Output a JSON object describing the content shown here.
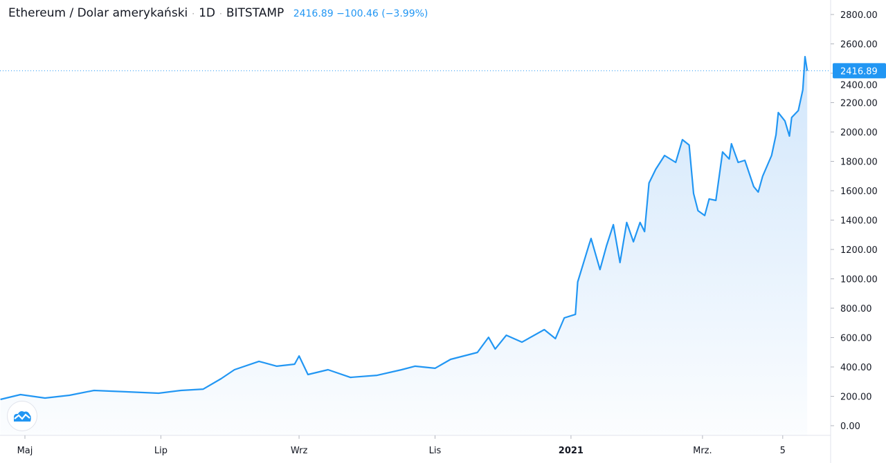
{
  "header": {
    "symbol": "Ethereum / Dolar amerykański",
    "interval": "1D",
    "exchange": "BITSTAMP",
    "last": "2416.89",
    "change": "−100.46",
    "change_pct": "(−3.99%)",
    "separator": "·"
  },
  "colors": {
    "line": "#2196f3",
    "fill_top": "#cfe5fb",
    "grid": "#e0e3eb"
  },
  "logo": {
    "icon": "tradingview-cloud-icon"
  },
  "chart_data": {
    "type": "area",
    "title": "Ethereum / Dolar amerykański · 1D · BITSTAMP",
    "xlabel": "",
    "ylabel": "",
    "x_unit": "days since 1 May 2020",
    "ylim": [
      0,
      2800
    ],
    "y_ticks": [
      "0.00",
      "200.00",
      "400.00",
      "600.00",
      "800.00",
      "1000.00",
      "1200.00",
      "1400.00",
      "1600.00",
      "1800.00",
      "2000.00",
      "2200.00",
      "2400.00",
      "2600.00",
      "2800.00"
    ],
    "x_ticks": [
      {
        "day": 0,
        "label": "Maj"
      },
      {
        "day": 61,
        "label": "Lip"
      },
      {
        "day": 123,
        "label": "Wrz"
      },
      {
        "day": 184,
        "label": "Lis"
      },
      {
        "day": 245,
        "label": "2021"
      },
      {
        "day": 304,
        "label": "Mrz."
      },
      {
        "day": 340,
        "label": "5"
      }
    ],
    "last_price_label": "2416.89",
    "last_price": 2416.89,
    "x": [
      -11,
      -2,
      9,
      20,
      31,
      45,
      60,
      70,
      80,
      88,
      94,
      105,
      113,
      121,
      123,
      127,
      136,
      146,
      158,
      169,
      175,
      184,
      191,
      203,
      208,
      211,
      216,
      223,
      233,
      238,
      242,
      247,
      248,
      253,
      254,
      258,
      261,
      264,
      267,
      270,
      273,
      276,
      278,
      280,
      283,
      287,
      292,
      295,
      298,
      300,
      302,
      305,
      307,
      310,
      313,
      316,
      317,
      320,
      323,
      327,
      329,
      331,
      335,
      337,
      338,
      341,
      343,
      344,
      347,
      349,
      350,
      351
    ],
    "y": [
      179,
      212,
      188,
      207,
      240,
      231,
      221,
      240,
      249,
      320,
      381,
      438,
      405,
      419,
      475,
      348,
      381,
      329,
      343,
      381,
      405,
      391,
      452,
      499,
      602,
      522,
      616,
      569,
      654,
      593,
      734,
      758,
      979,
      1228,
      1275,
      1063,
      1228,
      1369,
      1111,
      1384,
      1252,
      1384,
      1322,
      1652,
      1746,
      1840,
      1793,
      1948,
      1911,
      1581,
      1464,
      1431,
      1544,
      1534,
      1864,
      1816,
      1920,
      1793,
      1807,
      1628,
      1591,
      1699,
      1840,
      1981,
      2132,
      2075,
      1972,
      2099,
      2146,
      2287,
      2513,
      2417
    ]
  }
}
